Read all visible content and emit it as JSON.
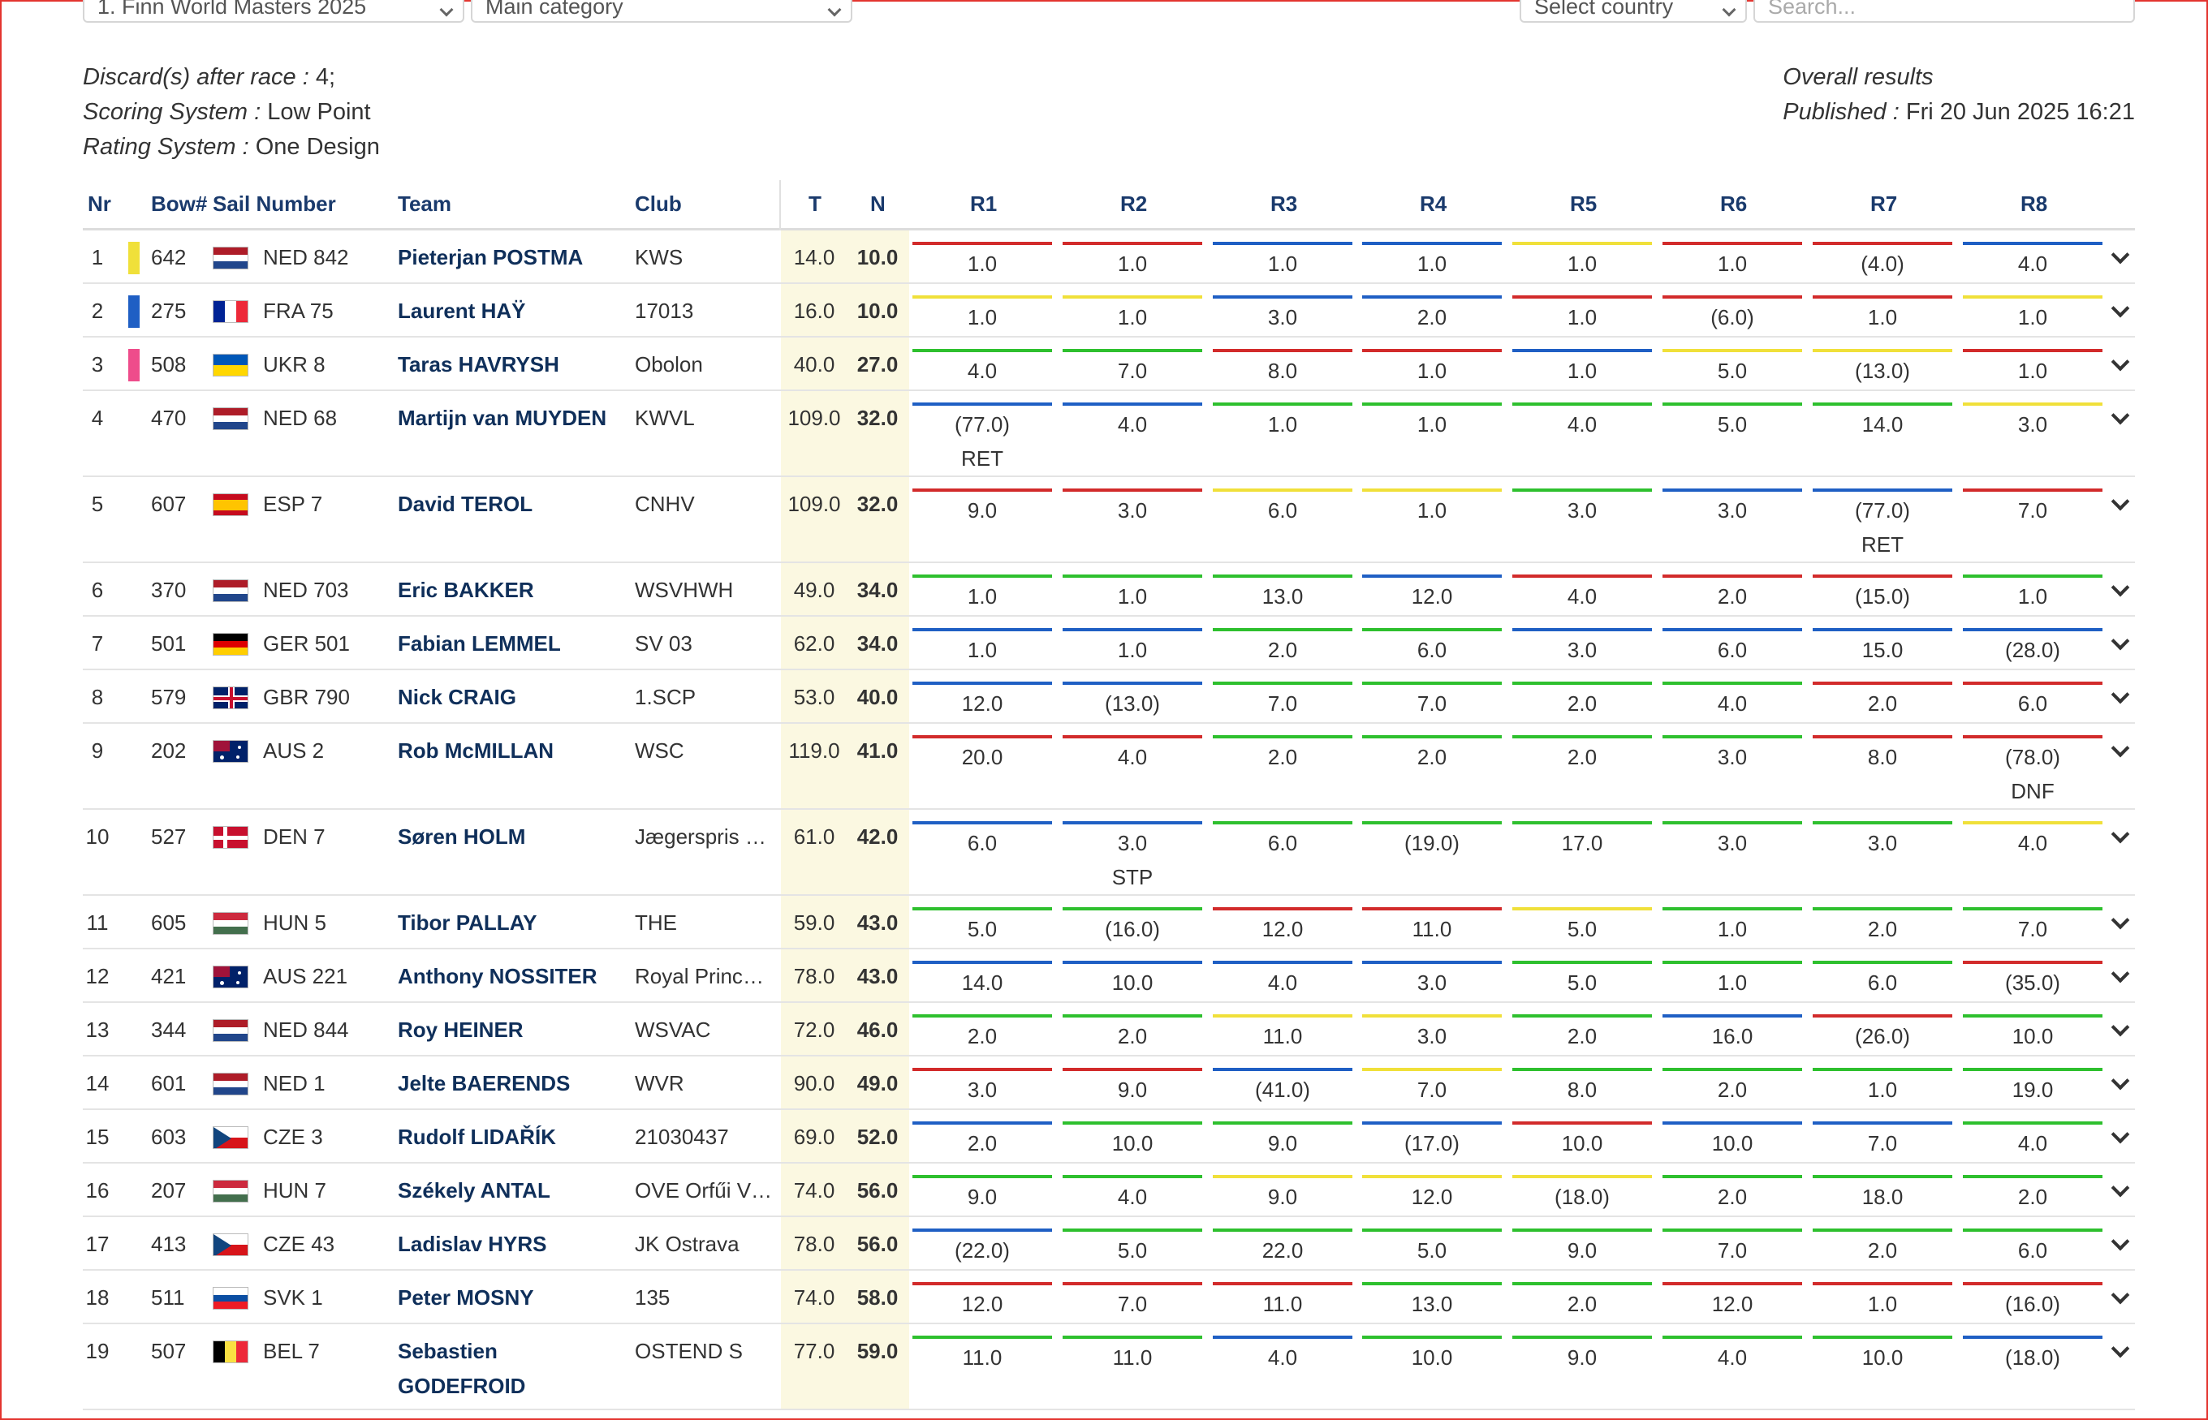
{
  "filters": {
    "event": "1. Finn World Masters 2025",
    "category": "Main category",
    "country": "Select country",
    "search_placeholder": "Search..."
  },
  "info": {
    "discard_label": "Discard(s) after race :",
    "discard_value": " 4;",
    "scoring_label": "Scoring System :",
    "scoring_value": " Low Point",
    "rating_label": "Rating System :",
    "rating_value": " One Design",
    "overall": "Overall results",
    "published_label": "Published :",
    "published_value": " Fri 20 Jun 2025 16:21"
  },
  "headers": {
    "nr": "Nr",
    "bow": "Bow#",
    "sail": "Sail Number",
    "team": "Team",
    "club": "Club",
    "t": "T",
    "n": "N",
    "races": [
      "R1",
      "R2",
      "R3",
      "R4",
      "R5",
      "R6",
      "R7",
      "R8"
    ]
  },
  "colors": {
    "red": "#d22b2b",
    "blue": "#1f5fc4",
    "yellow": "#f0e03a",
    "green": "#2ec02e",
    "pink": "#ee4c8b",
    "accent": "#0f2f5a"
  },
  "rows": [
    {
      "nr": "1",
      "bow": "642",
      "sail": "NED 842",
      "flag": "NED",
      "team": "Pieterjan POSTMA",
      "club": "KWS",
      "t": "14.0",
      "n": "10.0",
      "bar": "yellow",
      "races": [
        "1.0",
        "1.0",
        "1.0",
        "1.0",
        "1.0",
        "1.0",
        "(4.0)",
        "4.0"
      ],
      "lines": [
        "red",
        "red",
        "blue",
        "blue",
        "yellow",
        "red",
        "red",
        "blue"
      ],
      "codes": [
        "",
        "",
        "",
        "",
        "",
        "",
        "",
        ""
      ]
    },
    {
      "nr": "2",
      "bow": "275",
      "sail": "FRA 75",
      "flag": "FRA",
      "team": "Laurent HAŸ",
      "club": "17013",
      "t": "16.0",
      "n": "10.0",
      "bar": "blue",
      "races": [
        "1.0",
        "1.0",
        "3.0",
        "2.0",
        "1.0",
        "(6.0)",
        "1.0",
        "1.0"
      ],
      "lines": [
        "yellow",
        "yellow",
        "blue",
        "blue",
        "red",
        "red",
        "red",
        "yellow"
      ],
      "codes": [
        "",
        "",
        "",
        "",
        "",
        "",
        "",
        ""
      ]
    },
    {
      "nr": "3",
      "bow": "508",
      "sail": "UKR 8",
      "flag": "UKR",
      "team": "Taras HAVRYSH",
      "club": "Obolon",
      "t": "40.0",
      "n": "27.0",
      "bar": "pink",
      "races": [
        "4.0",
        "7.0",
        "8.0",
        "1.0",
        "1.0",
        "5.0",
        "(13.0)",
        "1.0"
      ],
      "lines": [
        "green",
        "green",
        "red",
        "red",
        "blue",
        "yellow",
        "yellow",
        "red"
      ],
      "codes": [
        "",
        "",
        "",
        "",
        "",
        "",
        "",
        ""
      ]
    },
    {
      "nr": "4",
      "bow": "470",
      "sail": "NED 68",
      "flag": "NED",
      "team": "Martijn van MUYDEN",
      "club": "KWVL",
      "t": "109.0",
      "n": "32.0",
      "bar": "",
      "races": [
        "(77.0)",
        "4.0",
        "1.0",
        "1.0",
        "4.0",
        "5.0",
        "14.0",
        "3.0"
      ],
      "lines": [
        "blue",
        "blue",
        "green",
        "green",
        "green",
        "green",
        "green",
        "yellow"
      ],
      "codes": [
        "RET",
        "",
        "",
        "",
        "",
        "",
        "",
        ""
      ]
    },
    {
      "nr": "5",
      "bow": "607",
      "sail": "ESP 7",
      "flag": "ESP",
      "team": "David TEROL",
      "club": "CNHV",
      "t": "109.0",
      "n": "32.0",
      "bar": "",
      "races": [
        "9.0",
        "3.0",
        "6.0",
        "1.0",
        "3.0",
        "3.0",
        "(77.0)",
        "7.0"
      ],
      "lines": [
        "red",
        "red",
        "yellow",
        "yellow",
        "green",
        "blue",
        "blue",
        "red"
      ],
      "codes": [
        "",
        "",
        "",
        "",
        "",
        "",
        "RET",
        ""
      ]
    },
    {
      "nr": "6",
      "bow": "370",
      "sail": "NED 703",
      "flag": "NED",
      "team": "Eric BAKKER",
      "club": "WSVHWH",
      "t": "49.0",
      "n": "34.0",
      "bar": "",
      "races": [
        "1.0",
        "1.0",
        "13.0",
        "12.0",
        "4.0",
        "2.0",
        "(15.0)",
        "1.0"
      ],
      "lines": [
        "green",
        "green",
        "green",
        "blue",
        "red",
        "red",
        "red",
        "green"
      ],
      "codes": [
        "",
        "",
        "",
        "",
        "",
        "",
        "",
        ""
      ]
    },
    {
      "nr": "7",
      "bow": "501",
      "sail": "GER 501",
      "flag": "GER",
      "team": "Fabian LEMMEL",
      "club": "SV 03",
      "t": "62.0",
      "n": "34.0",
      "bar": "",
      "races": [
        "1.0",
        "1.0",
        "2.0",
        "6.0",
        "3.0",
        "6.0",
        "15.0",
        "(28.0)"
      ],
      "lines": [
        "blue",
        "blue",
        "green",
        "green",
        "blue",
        "blue",
        "blue",
        "blue"
      ],
      "codes": [
        "",
        "",
        "",
        "",
        "",
        "",
        "",
        ""
      ]
    },
    {
      "nr": "8",
      "bow": "579",
      "sail": "GBR 790",
      "flag": "GBR",
      "team": "Nick CRAIG",
      "club": "1.SCP",
      "t": "53.0",
      "n": "40.0",
      "bar": "",
      "races": [
        "12.0",
        "(13.0)",
        "7.0",
        "7.0",
        "2.0",
        "4.0",
        "2.0",
        "6.0"
      ],
      "lines": [
        "blue",
        "blue",
        "green",
        "green",
        "green",
        "green",
        "red",
        "red"
      ],
      "codes": [
        "",
        "",
        "",
        "",
        "",
        "",
        "",
        ""
      ]
    },
    {
      "nr": "9",
      "bow": "202",
      "sail": "AUS 2",
      "flag": "AUS",
      "team": "Rob McMILLAN",
      "club": "WSC",
      "t": "119.0",
      "n": "41.0",
      "bar": "",
      "races": [
        "20.0",
        "4.0",
        "2.0",
        "2.0",
        "2.0",
        "3.0",
        "8.0",
        "(78.0)"
      ],
      "lines": [
        "red",
        "red",
        "green",
        "green",
        "green",
        "green",
        "red",
        "red"
      ],
      "codes": [
        "",
        "",
        "",
        "",
        "",
        "",
        "",
        "DNF"
      ]
    },
    {
      "nr": "10",
      "bow": "527",
      "sail": "DEN 7",
      "flag": "DEN",
      "team": "Søren HOLM",
      "club": "Jægerspris Sejlklub",
      "t": "61.0",
      "n": "42.0",
      "bar": "",
      "races": [
        "6.0",
        "3.0",
        "6.0",
        "(19.0)",
        "17.0",
        "3.0",
        "3.0",
        "4.0"
      ],
      "lines": [
        "blue",
        "blue",
        "green",
        "green",
        "green",
        "green",
        "green",
        "yellow"
      ],
      "codes": [
        "",
        "STP",
        "",
        "",
        "",
        "",
        "",
        ""
      ]
    },
    {
      "nr": "11",
      "bow": "605",
      "sail": "HUN 5",
      "flag": "HUN",
      "team": "Tibor PALLAY",
      "club": "THE",
      "t": "59.0",
      "n": "43.0",
      "bar": "",
      "races": [
        "5.0",
        "(16.0)",
        "12.0",
        "11.0",
        "5.0",
        "1.0",
        "2.0",
        "7.0"
      ],
      "lines": [
        "green",
        "green",
        "red",
        "red",
        "yellow",
        "green",
        "green",
        "green"
      ],
      "codes": [
        "",
        "",
        "",
        "",
        "",
        "",
        "",
        ""
      ]
    },
    {
      "nr": "12",
      "bow": "421",
      "sail": "AUS 221",
      "flag": "AUS",
      "team": "Anthony NOSSITER",
      "club": "Royal Prince Alfred",
      "t": "78.0",
      "n": "43.0",
      "bar": "",
      "races": [
        "14.0",
        "10.0",
        "4.0",
        "3.0",
        "5.0",
        "1.0",
        "6.0",
        "(35.0)"
      ],
      "lines": [
        "blue",
        "blue",
        "blue",
        "blue",
        "green",
        "green",
        "green",
        "red"
      ],
      "codes": [
        "",
        "",
        "",
        "",
        "",
        "",
        "",
        ""
      ]
    },
    {
      "nr": "13",
      "bow": "344",
      "sail": "NED 844",
      "flag": "NED",
      "team": "Roy HEINER",
      "club": "WSVAC",
      "t": "72.0",
      "n": "46.0",
      "bar": "",
      "races": [
        "2.0",
        "2.0",
        "11.0",
        "3.0",
        "2.0",
        "16.0",
        "(26.0)",
        "10.0"
      ],
      "lines": [
        "green",
        "green",
        "yellow",
        "yellow",
        "green",
        "blue",
        "red",
        "green"
      ],
      "codes": [
        "",
        "",
        "",
        "",
        "",
        "",
        "",
        ""
      ]
    },
    {
      "nr": "14",
      "bow": "601",
      "sail": "NED 1",
      "flag": "NED",
      "team": "Jelte BAERENDS",
      "club": "WVR",
      "t": "90.0",
      "n": "49.0",
      "bar": "",
      "races": [
        "3.0",
        "9.0",
        "(41.0)",
        "7.0",
        "8.0",
        "2.0",
        "1.0",
        "19.0"
      ],
      "lines": [
        "red",
        "red",
        "blue",
        "yellow",
        "green",
        "green",
        "green",
        "green"
      ],
      "codes": [
        "",
        "",
        "",
        "",
        "",
        "",
        "",
        ""
      ]
    },
    {
      "nr": "15",
      "bow": "603",
      "sail": "CZE 3",
      "flag": "CZE",
      "team": "Rudolf LIDAŘÍK",
      "club": "21030437",
      "t": "69.0",
      "n": "52.0",
      "bar": "",
      "races": [
        "2.0",
        "10.0",
        "9.0",
        "(17.0)",
        "10.0",
        "10.0",
        "7.0",
        "4.0"
      ],
      "lines": [
        "blue",
        "green",
        "green",
        "blue",
        "red",
        "blue",
        "blue",
        "green"
      ],
      "codes": [
        "",
        "",
        "",
        "",
        "",
        "",
        "",
        ""
      ]
    },
    {
      "nr": "16",
      "bow": "207",
      "sail": "HUN 7",
      "flag": "HUN",
      "team": "Székely ANTAL",
      "club": "OVE Orfűi Vízisport",
      "t": "74.0",
      "n": "56.0",
      "bar": "",
      "races": [
        "9.0",
        "4.0",
        "9.0",
        "12.0",
        "(18.0)",
        "2.0",
        "18.0",
        "2.0"
      ],
      "lines": [
        "green",
        "green",
        "yellow",
        "yellow",
        "yellow",
        "green",
        "green",
        "green"
      ],
      "codes": [
        "",
        "",
        "",
        "",
        "",
        "",
        "",
        ""
      ]
    },
    {
      "nr": "17",
      "bow": "413",
      "sail": "CZE 43",
      "flag": "CZE",
      "team": "Ladislav HYRS",
      "club": "JK Ostrava",
      "t": "78.0",
      "n": "56.0",
      "bar": "",
      "races": [
        "(22.0)",
        "5.0",
        "22.0",
        "5.0",
        "9.0",
        "7.0",
        "2.0",
        "6.0"
      ],
      "lines": [
        "blue",
        "green",
        "green",
        "green",
        "green",
        "green",
        "green",
        "green"
      ],
      "codes": [
        "",
        "",
        "",
        "",
        "",
        "",
        "",
        ""
      ]
    },
    {
      "nr": "18",
      "bow": "511",
      "sail": "SVK 1",
      "flag": "SVK",
      "team": "Peter MOSNY",
      "club": "135",
      "t": "74.0",
      "n": "58.0",
      "bar": "",
      "races": [
        "12.0",
        "7.0",
        "11.0",
        "13.0",
        "2.0",
        "12.0",
        "1.0",
        "(16.0)"
      ],
      "lines": [
        "red",
        "red",
        "red",
        "green",
        "green",
        "red",
        "red",
        "red"
      ],
      "codes": [
        "",
        "",
        "",
        "",
        "",
        "",
        "",
        ""
      ]
    },
    {
      "nr": "19",
      "bow": "507",
      "sail": "BEL 7",
      "flag": "BEL",
      "team": "Sebastien GODEFROID",
      "club": "OSTEND S",
      "t": "77.0",
      "n": "59.0",
      "bar": "",
      "races": [
        "11.0",
        "11.0",
        "4.0",
        "10.0",
        "9.0",
        "4.0",
        "10.0",
        "(18.0)"
      ],
      "lines": [
        "green",
        "green",
        "blue",
        "green",
        "green",
        "green",
        "green",
        "blue"
      ],
      "codes": [
        "",
        "",
        "",
        "",
        "",
        "",
        "",
        ""
      ]
    }
  ]
}
